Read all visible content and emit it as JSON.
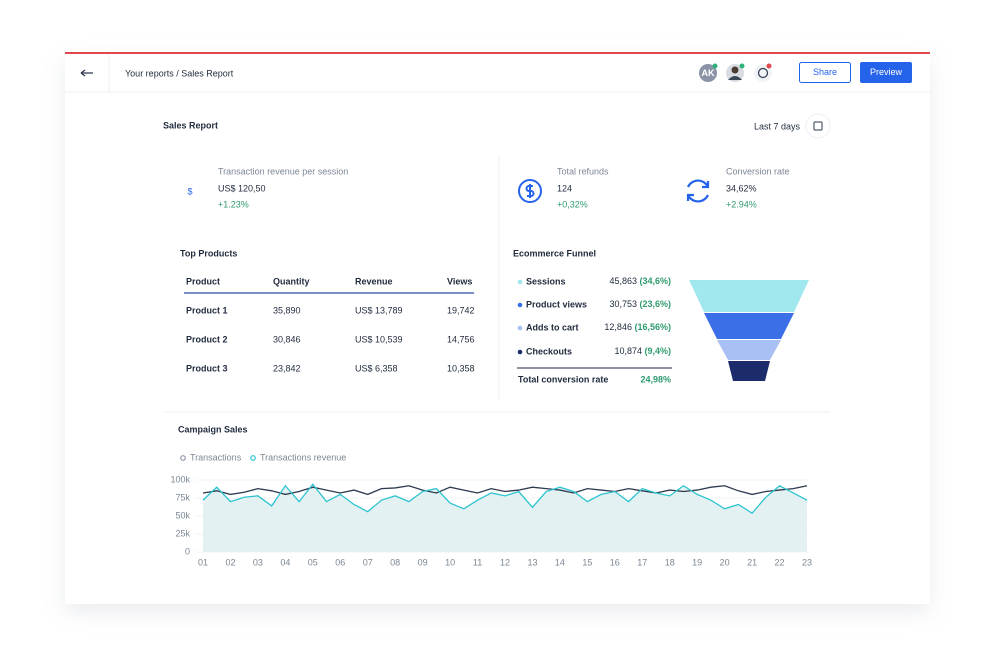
{
  "header": {
    "breadcrumb": "Your reports / Sales Report",
    "avatar_initials": "AK",
    "share": "Share",
    "preview": "Preview"
  },
  "report": {
    "title": "Sales Report",
    "range": "Last 7 days"
  },
  "kpis": [
    {
      "label": "Transaction revenue per session",
      "value": "US$ 120,50",
      "change": "+1.23%"
    },
    {
      "label": "Total refunds",
      "value": "124",
      "change": "+0,32%"
    },
    {
      "label": "Conversion rate",
      "value": "34,62%",
      "change": "+2.94%"
    }
  ],
  "top_products": {
    "title": "Top Products",
    "columns": [
      "Product",
      "Quantity",
      "Revenue",
      "Views"
    ],
    "rows": [
      [
        "Product 1",
        "35,890",
        "US$ 13,789",
        "19,742"
      ],
      [
        "Product 2",
        "30,846",
        "US$ 10,539",
        "14,756"
      ],
      [
        "Product 3",
        "23,842",
        "US$ 6,358",
        "10,358"
      ]
    ]
  },
  "funnel": {
    "title": "Ecommerce Funnel",
    "steps": [
      {
        "name": "Sessions",
        "value": "45,863",
        "share": "(34,6%)",
        "color": "#a0e7ee"
      },
      {
        "name": "Product views",
        "value": "30,753",
        "share": "(23,6%)",
        "color": "#3b6fe8"
      },
      {
        "name": "Adds to cart",
        "value": "12,846",
        "share": "(16,56%)",
        "color": "#a9c0f5"
      },
      {
        "name": "Checkouts",
        "value": "10,874",
        "share": "(9,4%)",
        "color": "#1b2b6b"
      }
    ],
    "total_label": "Total conversion rate",
    "total_value": "24,98%"
  },
  "campaign_chart": {
    "type": "line",
    "title": "Campaign Sales",
    "categories": [
      "01",
      null,
      "02",
      null,
      "03",
      null,
      "04",
      null,
      "05",
      null,
      "06",
      null,
      "07",
      null,
      "08",
      null,
      "09",
      null,
      "10",
      null,
      "11",
      null,
      "12",
      null,
      "13",
      null,
      "14",
      null,
      "15",
      null,
      "16",
      null,
      "17",
      null,
      "18",
      null,
      "19",
      null,
      "20",
      null,
      "21",
      null,
      "22",
      null,
      "23"
    ],
    "series": [
      {
        "name": "Transactions",
        "color": "#2d3a4f",
        "values": [
          82000,
          85000,
          80000,
          83000,
          88000,
          85000,
          80000,
          84000,
          90000,
          86000,
          82000,
          86000,
          80000,
          88000,
          89000,
          92000,
          86000,
          82000,
          90000,
          86000,
          82000,
          88000,
          84000,
          86000,
          90000,
          88000,
          86000,
          82000,
          88000,
          86000,
          84000,
          88000,
          85000,
          82000,
          86000,
          84000,
          86000,
          90000,
          92000,
          85000,
          80000,
          84000,
          86000,
          88000,
          92000
        ]
      },
      {
        "name": "Transactions revenue",
        "color": "#2ec4cf",
        "values": [
          72000,
          90000,
          70000,
          76000,
          78000,
          64000,
          92000,
          70000,
          94000,
          70000,
          80000,
          66000,
          56000,
          72000,
          78000,
          70000,
          84000,
          88000,
          68000,
          60000,
          72000,
          82000,
          78000,
          84000,
          62000,
          84000,
          90000,
          84000,
          70000,
          80000,
          84000,
          70000,
          88000,
          82000,
          78000,
          92000,
          80000,
          72000,
          60000,
          66000,
          54000,
          76000,
          92000,
          82000,
          72000
        ]
      }
    ],
    "ylim": [
      0,
      100000
    ],
    "yticks": [
      {
        "value": 0,
        "label": "0"
      },
      {
        "value": 25000,
        "label": "25k"
      },
      {
        "value": 50000,
        "label": "50k"
      },
      {
        "value": 75000,
        "label": "75k"
      },
      {
        "value": 100000,
        "label": "100k"
      }
    ],
    "grid": true
  }
}
